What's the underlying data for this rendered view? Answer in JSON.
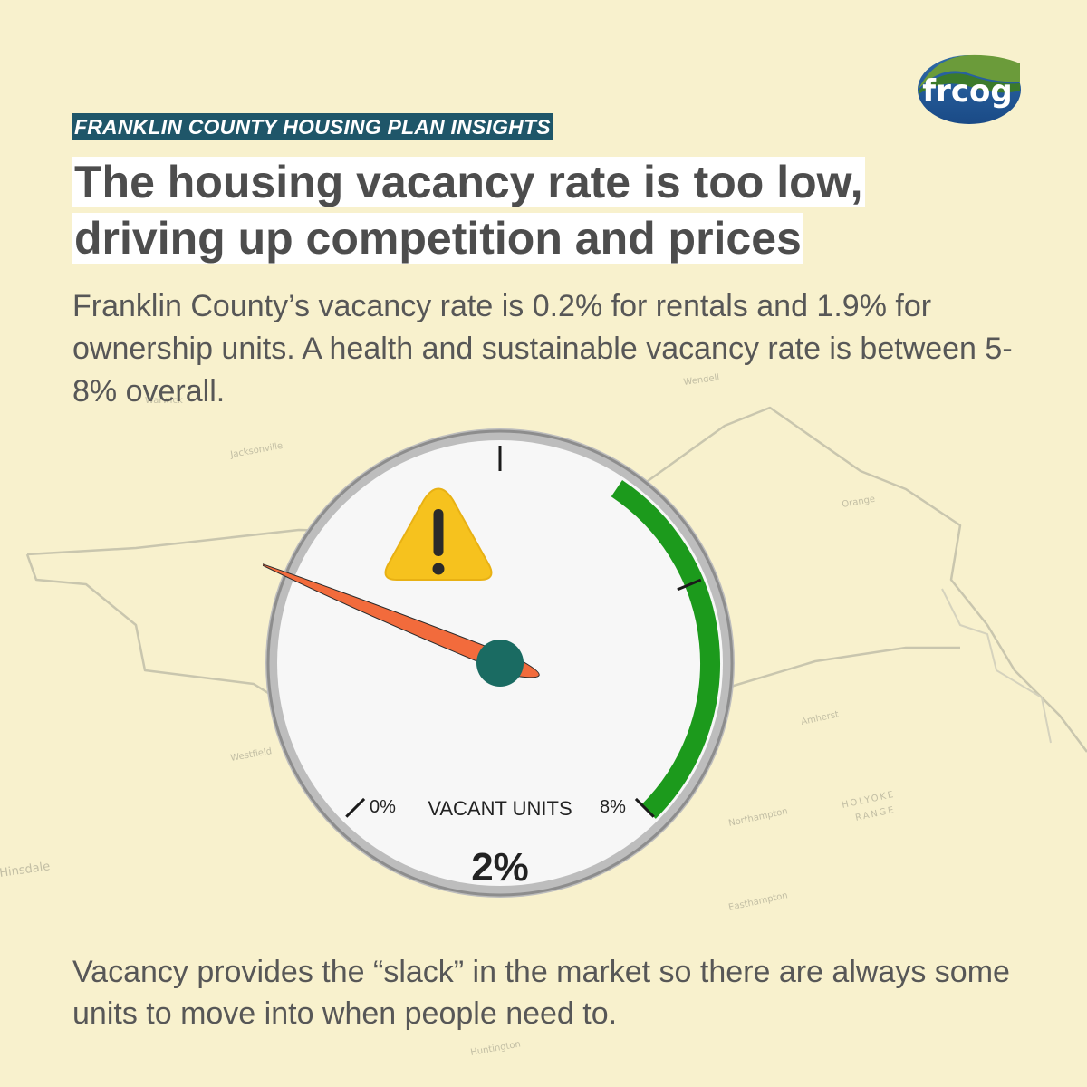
{
  "header": {
    "eyebrow": "FRANKLIN COUNTY HOUSING PLAN INSIGHTS",
    "headline_line1": "The housing vacancy rate is too low,",
    "headline_line2": "driving up competition and prices"
  },
  "intro": {
    "text": "Franklin County’s vacancy rate is 0.2% for rentals and 1.9% for ownership units. A health and sustainable vacancy rate is between 5-8% overall."
  },
  "logo": {
    "text": "frcog"
  },
  "gauge": {
    "label": "VACANT UNITS",
    "min_label": "0%",
    "max_label": "8%",
    "value_label": "2%",
    "value": 2,
    "min": 0,
    "max": 8,
    "healthy_range": [
      5,
      8
    ],
    "warning_icon": "warning-triangle-icon",
    "colors": {
      "healthy_arc": "#1c9a1c",
      "needle": "#f26b3c",
      "hub": "#1a6b62",
      "warning": "#f5c518"
    }
  },
  "map_labels": [
    "Wendell",
    "Jacksonville",
    "Orange",
    "Warwick",
    "Amherst",
    "Northampton",
    "HOLYOKE",
    "RANGE",
    "Easthampton",
    "Hinsdale",
    "Huntington",
    "Westfield"
  ],
  "footer": {
    "text": "Vacancy provides the “slack” in the market so there are always some units to move into when people need to."
  }
}
